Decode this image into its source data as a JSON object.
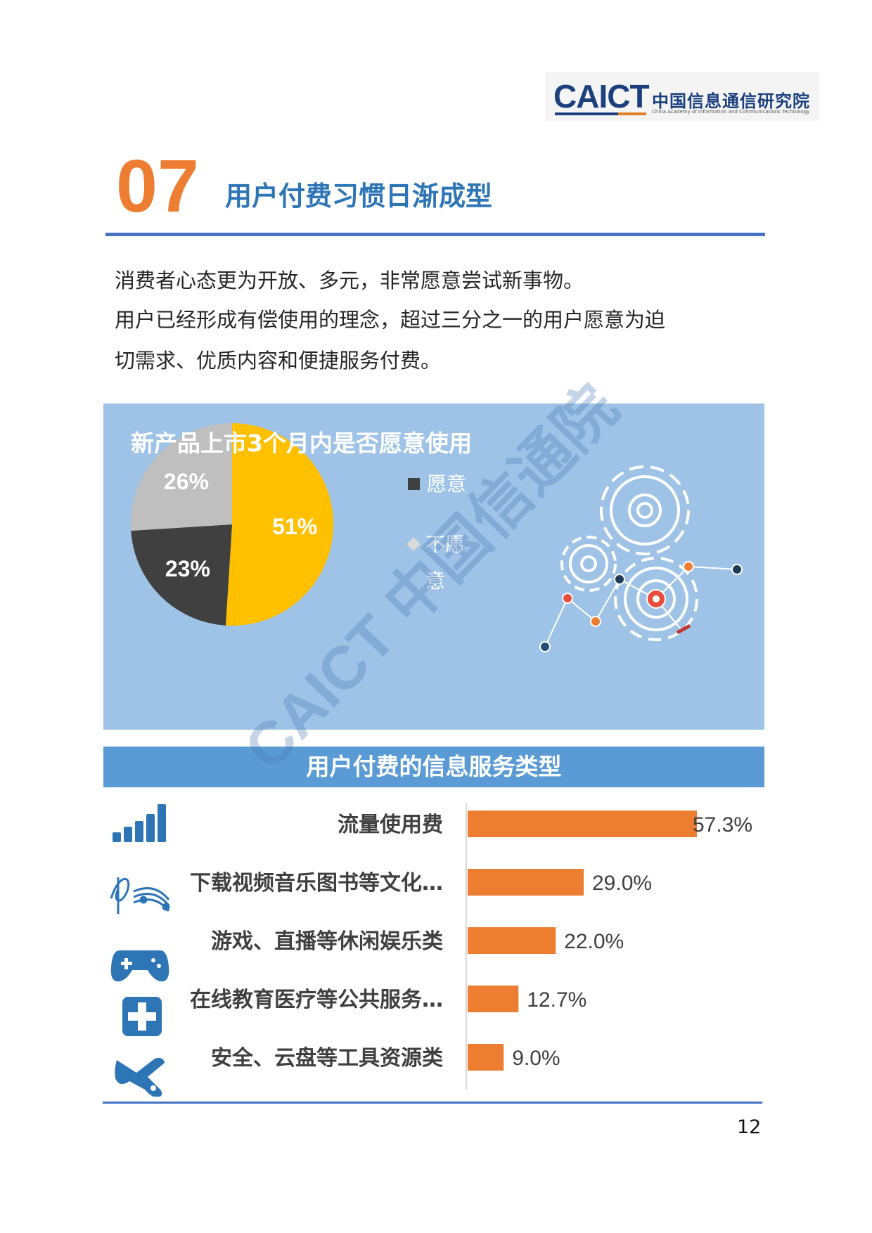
{
  "header": {
    "logo_mark": "CAICT",
    "logo_cn": "中国信息通信研究院",
    "logo_en": "China Academy of Information and Communications Technology"
  },
  "section": {
    "number": "07",
    "title": "用户付费习惯日渐成型"
  },
  "body": {
    "line1": "消费者心态更为开放、多元，非常愿意尝试新事物。",
    "line2": "用户已经形成有偿使用的理念，超过三分之一的用户愿意为迫",
    "line3": "切需求、优质内容和便捷服务付费。"
  },
  "watermark": "CAICT 中国信通院",
  "colors": {
    "accent_orange": "#ed7d31",
    "title_blue": "#2e75b6",
    "panel_blue": "#9ec3e6",
    "band_blue": "#5b9bd5",
    "pie_yellow": "#ffc000",
    "pie_dark": "#404040",
    "pie_gray": "#bfbfbf"
  },
  "chart_data": [
    {
      "type": "pie",
      "title": "新产品上市3个月内是否愿意使用",
      "slices": [
        {
          "label": "51%",
          "value": 51,
          "color": "#ffc000"
        },
        {
          "label": "23%",
          "value": 23,
          "color": "#404040"
        },
        {
          "label": "26%",
          "value": 26,
          "color": "#bfbfbf"
        }
      ],
      "legend": [
        {
          "label": "愿意",
          "color": "#404040",
          "marker": "square"
        },
        {
          "label_line1": "不愿",
          "label_line2": "意",
          "color": "#d9d9d9",
          "marker": "diamond"
        }
      ],
      "legend_position": "right"
    },
    {
      "type": "bar",
      "orientation": "horizontal",
      "title": "用户付费的信息服务类型",
      "categories": [
        "流量使用费",
        "下载视频音乐图书等文化…",
        "游戏、直播等休闲娱乐类",
        "在线教育医疗等公共服务…",
        "安全、云盘等工具资源类"
      ],
      "icons": [
        "signal-bars-icon",
        "music-notes-icon",
        "gamepad-icon",
        "medical-cross-icon",
        "wrench-icon"
      ],
      "values": [
        57.3,
        29.0,
        22.0,
        12.7,
        9.0
      ],
      "value_labels": [
        "57.3%",
        "29.0%",
        "22.0%",
        "12.7%",
        "9.0%"
      ],
      "xlim": [
        0,
        60
      ],
      "bar_color": "#ed7d31"
    }
  ],
  "footer": {
    "page_number": "12"
  }
}
